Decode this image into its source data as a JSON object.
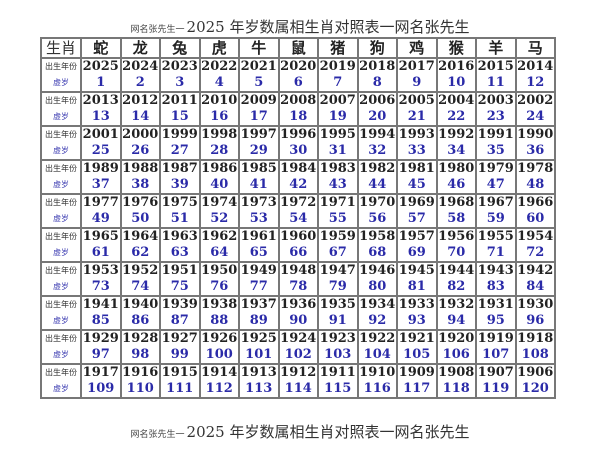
{
  "title": {
    "prefix": "网名张先生一",
    "text": "2025 年岁数属相生肖对照表一网名张先生"
  },
  "table": {
    "header_label": "生肖",
    "animals": [
      "蛇",
      "龙",
      "兔",
      "虎",
      "牛",
      "鼠",
      "猪",
      "狗",
      "鸡",
      "猴",
      "羊",
      "马"
    ],
    "year_label": "出生年份",
    "age_label": "虚岁",
    "groups": [
      {
        "years": [
          2025,
          2024,
          2023,
          2022,
          2021,
          2020,
          2019,
          2018,
          2017,
          2016,
          2015,
          2014
        ],
        "ages": [
          1,
          2,
          3,
          4,
          5,
          6,
          7,
          8,
          9,
          10,
          11,
          12
        ]
      },
      {
        "years": [
          2013,
          2012,
          2011,
          2010,
          2009,
          2008,
          2007,
          2006,
          2005,
          2004,
          2003,
          2002
        ],
        "ages": [
          13,
          14,
          15,
          16,
          17,
          18,
          19,
          20,
          21,
          22,
          23,
          24
        ]
      },
      {
        "years": [
          2001,
          2000,
          1999,
          1998,
          1997,
          1996,
          1995,
          1994,
          1993,
          1992,
          1991,
          1990
        ],
        "ages": [
          25,
          26,
          27,
          28,
          29,
          30,
          31,
          32,
          33,
          34,
          35,
          36
        ]
      },
      {
        "years": [
          1989,
          1988,
          1987,
          1986,
          1985,
          1984,
          1983,
          1982,
          1981,
          1980,
          1979,
          1978
        ],
        "ages": [
          37,
          38,
          39,
          40,
          41,
          42,
          43,
          44,
          45,
          46,
          47,
          48
        ]
      },
      {
        "years": [
          1977,
          1976,
          1975,
          1974,
          1973,
          1972,
          1971,
          1970,
          1969,
          1968,
          1967,
          1966
        ],
        "ages": [
          49,
          50,
          51,
          52,
          53,
          54,
          55,
          56,
          57,
          58,
          59,
          60
        ]
      },
      {
        "years": [
          1965,
          1964,
          1963,
          1962,
          1961,
          1960,
          1959,
          1958,
          1957,
          1956,
          1955,
          1954
        ],
        "ages": [
          61,
          62,
          63,
          64,
          65,
          66,
          67,
          68,
          69,
          70,
          71,
          72
        ]
      },
      {
        "years": [
          1953,
          1952,
          1951,
          1950,
          1949,
          1948,
          1947,
          1946,
          1945,
          1944,
          1943,
          1942
        ],
        "ages": [
          73,
          74,
          75,
          76,
          77,
          78,
          79,
          80,
          81,
          82,
          83,
          84
        ]
      },
      {
        "years": [
          1941,
          1940,
          1939,
          1938,
          1937,
          1936,
          1935,
          1934,
          1933,
          1932,
          1931,
          1930
        ],
        "ages": [
          85,
          86,
          87,
          88,
          89,
          90,
          91,
          92,
          93,
          94,
          95,
          96
        ]
      },
      {
        "years": [
          1929,
          1928,
          1927,
          1926,
          1925,
          1924,
          1923,
          1922,
          1921,
          1920,
          1919,
          1918
        ],
        "ages": [
          97,
          98,
          99,
          100,
          101,
          102,
          103,
          104,
          105,
          106,
          107,
          108
        ]
      },
      {
        "years": [
          1917,
          1916,
          1915,
          1914,
          1913,
          1912,
          1911,
          1910,
          1909,
          1908,
          1907,
          1906
        ],
        "ages": [
          109,
          110,
          111,
          112,
          113,
          114,
          115,
          116,
          117,
          118,
          119,
          120
        ]
      }
    ]
  }
}
